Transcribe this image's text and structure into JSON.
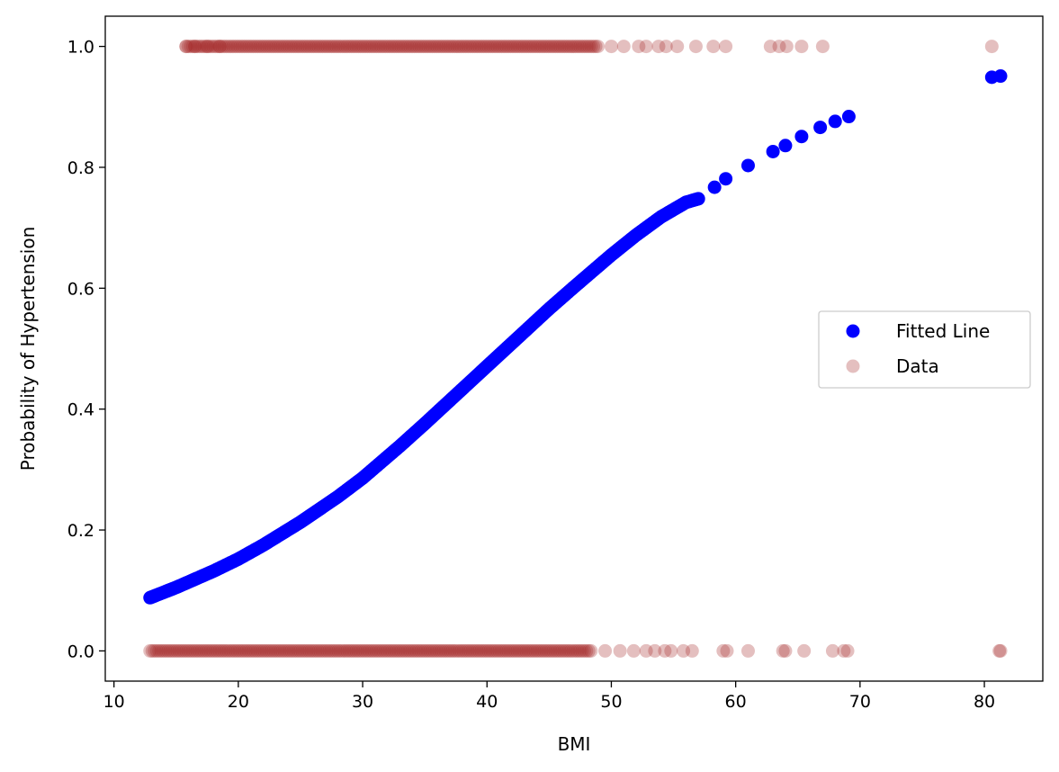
{
  "chart_data": {
    "type": "scatter",
    "xlabel": "BMI",
    "ylabel": "Probability of Hypertension",
    "xlim": [
      9.3,
      84.7
    ],
    "ylim": [
      -0.05,
      1.05
    ],
    "xticks": [
      10,
      20,
      30,
      40,
      50,
      60,
      70,
      80
    ],
    "yticks": [
      0.0,
      0.2,
      0.4,
      0.6,
      0.8,
      1.0
    ],
    "xtick_labels": [
      "10",
      "20",
      "30",
      "40",
      "50",
      "60",
      "70",
      "80"
    ],
    "ytick_labels": [
      "0.0",
      "0.2",
      "0.4",
      "0.6",
      "0.8",
      "1.0"
    ],
    "grid": false,
    "legend": {
      "position": "center-right",
      "entries": [
        {
          "name": "Fitted Line",
          "color": "#0000ff"
        },
        {
          "name": "Data",
          "color": "#a52a2a"
        }
      ]
    },
    "series": [
      {
        "name": "Fitted Line",
        "kind": "scatter",
        "color": "#0000ff",
        "x": [
          12.9,
          15,
          18,
          20,
          22,
          25,
          28,
          30,
          33,
          35,
          38,
          40,
          42,
          45,
          47,
          50,
          52,
          54,
          56,
          57,
          58.3,
          59.2,
          61,
          63,
          64,
          65.3,
          66.8,
          68,
          69.1,
          80.6,
          81.3
        ],
        "y": [
          0.088,
          0.105,
          0.132,
          0.152,
          0.175,
          0.213,
          0.255,
          0.286,
          0.339,
          0.376,
          0.433,
          0.471,
          0.509,
          0.566,
          0.602,
          0.655,
          0.688,
          0.718,
          0.742,
          0.748,
          0.767,
          0.781,
          0.803,
          0.826,
          0.836,
          0.851,
          0.866,
          0.876,
          0.884,
          0.949,
          0.951
        ]
      },
      {
        "name": "Data",
        "kind": "scatter",
        "color": "#a52a2a",
        "alpha": 0.3,
        "y1": {
          "dense_range": [
            15.8,
            49.0
          ],
          "x": [
            15.8,
            16.5,
            17.5,
            18.5,
            50,
            51,
            52.2,
            52.8,
            53.8,
            54.4,
            55.3,
            56.8,
            58.2,
            59.2,
            62.8,
            63.5,
            64.1,
            65.3,
            67.0,
            80.6
          ]
        },
        "y0": {
          "dense_range": [
            12.9,
            48.5
          ],
          "x": [
            49.5,
            50.7,
            51.8,
            52.8,
            53.5,
            54.3,
            54.8,
            55.8,
            56.5,
            59.0,
            59.3,
            61.0,
            63.8,
            64.0,
            65.5,
            67.8,
            68.7,
            69.0,
            81.2,
            81.3
          ]
        }
      }
    ]
  }
}
